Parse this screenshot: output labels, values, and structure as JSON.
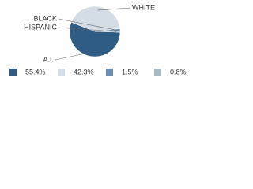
{
  "chart_data": {
    "type": "pie",
    "categories": [
      "A.I.",
      "WHITE",
      "BLACK",
      "HISPANIC"
    ],
    "values": [
      55.4,
      42.3,
      1.5,
      0.8
    ],
    "value_labels": [
      "55.4%",
      "42.3%",
      "1.5%",
      "0.8%"
    ],
    "colors": [
      "#2f5c85",
      "#d4dce6",
      "#6a8fb3",
      "#a8b8c9"
    ]
  }
}
